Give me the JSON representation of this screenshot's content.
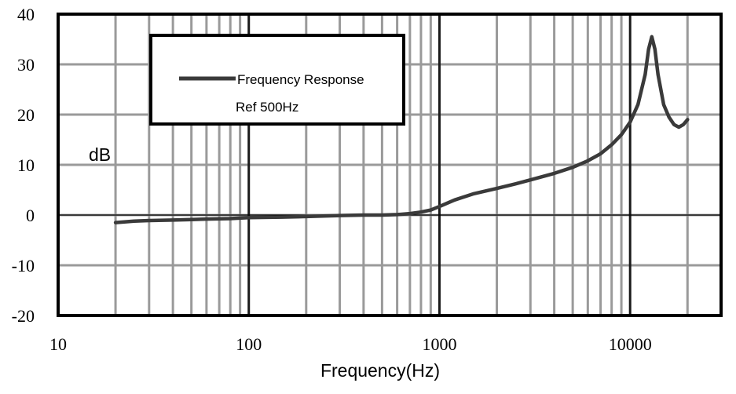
{
  "chart_data": {
    "type": "line",
    "title": "",
    "xlabel": "Frequency(Hz)",
    "ylabel": "dB",
    "x_scale": "log",
    "xlim": [
      10,
      30000
    ],
    "ylim": [
      -20,
      40
    ],
    "x_ticks": [
      10,
      100,
      1000,
      10000
    ],
    "x_tick_labels": [
      "10",
      "100",
      "1000",
      "10000"
    ],
    "y_ticks": [
      -20,
      -10,
      0,
      10,
      20,
      30,
      40
    ],
    "y_tick_labels": [
      "-20",
      "-10",
      "0",
      "10",
      "20",
      "30",
      "40"
    ],
    "grid": true,
    "legend": {
      "placement": "top-left",
      "entries": [
        "Frequency Response",
        "Ref 500Hz"
      ]
    },
    "series": [
      {
        "name": "Frequency Response",
        "x": [
          20,
          25,
          30,
          40,
          50,
          60,
          80,
          100,
          150,
          200,
          300,
          400,
          500,
          600,
          700,
          800,
          900,
          1000,
          1200,
          1500,
          2000,
          2500,
          3000,
          4000,
          5000,
          6000,
          7000,
          8000,
          9000,
          10000,
          11000,
          12000,
          12500,
          13000,
          13500,
          14000,
          15000,
          16000,
          17000,
          18000,
          19000,
          20000
        ],
        "y": [
          -1.5,
          -1.2,
          -1.1,
          -1.0,
          -0.9,
          -0.8,
          -0.7,
          -0.5,
          -0.4,
          -0.3,
          -0.1,
          0,
          0,
          0.1,
          0.3,
          0.6,
          1.0,
          1.7,
          3.0,
          4.2,
          5.3,
          6.2,
          7.0,
          8.3,
          9.5,
          10.8,
          12.2,
          14.0,
          16.0,
          18.5,
          22.0,
          28.0,
          33.0,
          35.5,
          33.0,
          28.0,
          22.0,
          19.5,
          18.0,
          17.5,
          18.0,
          19.0
        ]
      }
    ]
  }
}
